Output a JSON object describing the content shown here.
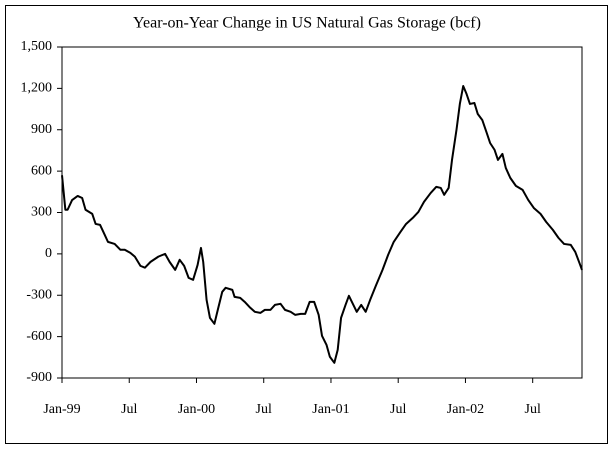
{
  "chart_data": {
    "type": "line",
    "title": "Year-on-Year Change in US Natural Gas Storage (bcf)",
    "x": [
      0,
      0.3,
      0.5,
      0.9,
      1.4,
      1.8,
      2.1,
      2.7,
      3.0,
      3.4,
      3.8,
      4.1,
      4.7,
      5.2,
      5.6,
      6.1,
      6.5,
      7.0,
      7.4,
      7.9,
      8.6,
      9.2,
      9.6,
      10.1,
      10.5,
      10.9,
      11.3,
      11.7,
      12.1,
      12.4,
      12.6,
      12.9,
      13.2,
      13.6,
      13.9,
      14.3,
      14.6,
      15.2,
      15.4,
      15.9,
      16.3,
      16.8,
      17.2,
      17.7,
      18.1,
      18.6,
      19.0,
      19.5,
      19.9,
      20.4,
      20.8,
      21.3,
      21.7,
      22.1,
      22.5,
      22.9,
      23.2,
      23.6,
      23.9,
      24.3,
      24.6,
      24.9,
      25.3,
      25.6,
      26.0,
      26.3,
      26.7,
      27.1,
      27.5,
      28.0,
      28.6,
      29.1,
      29.6,
      30.2,
      30.7,
      31.3,
      31.8,
      32.3,
      32.9,
      33.4,
      33.8,
      34.1,
      34.5,
      34.8,
      35.2,
      35.5,
      35.8,
      36.1,
      36.4,
      36.8,
      37.1,
      37.5,
      37.9,
      38.2,
      38.6,
      38.9,
      39.3,
      39.6,
      40.0,
      40.5,
      41.1,
      41.6,
      42.1,
      42.7,
      43.2,
      43.8,
      44.3,
      44.8,
      45.4,
      45.8,
      46.2,
      46.4
    ],
    "series": [
      {
        "name": "Year-on-Year Change",
        "color": "#000000",
        "values": [
          570,
          320,
          320,
          390,
          420,
          405,
          320,
          290,
          217,
          210,
          140,
          87,
          72,
          30,
          30,
          7,
          -20,
          -87,
          -100,
          -58,
          -20,
          0,
          -58,
          -116,
          -43,
          -87,
          -174,
          -188,
          -80,
          43,
          -58,
          -333,
          -464,
          -507,
          -406,
          -275,
          -246,
          -261,
          -312,
          -319,
          -348,
          -391,
          -420,
          -428,
          -406,
          -406,
          -370,
          -362,
          -406,
          -420,
          -442,
          -435,
          -435,
          -348,
          -348,
          -442,
          -594,
          -659,
          -746,
          -790,
          -696,
          -464,
          -370,
          -304,
          -370,
          -420,
          -370,
          -420,
          -333,
          -232,
          -116,
          -7,
          87,
          159,
          217,
          261,
          304,
          377,
          442,
          486,
          478,
          428,
          478,
          681,
          899,
          1087,
          1217,
          1159,
          1087,
          1094,
          1014,
          971,
          877,
          804,
          754,
          681,
          725,
          623,
          551,
          493,
          464,
          391,
          333,
          290,
          232,
          174,
          116,
          72,
          65,
          14,
          -72,
          -116
        ]
      }
    ],
    "xlim": [
      0,
      46.4
    ],
    "xticks": [
      {
        "value": 0,
        "label": "Jan-99"
      },
      {
        "value": 6,
        "label": "Jul"
      },
      {
        "value": 12,
        "label": "Jan-00"
      },
      {
        "value": 18,
        "label": "Jul"
      },
      {
        "value": 24,
        "label": "Jan-01"
      },
      {
        "value": 30,
        "label": "Jul"
      },
      {
        "value": 36,
        "label": "Jan-02"
      },
      {
        "value": 42,
        "label": "Jul"
      }
    ],
    "ylim": [
      -900,
      1500
    ],
    "yticks": [
      {
        "value": 1500,
        "label": "1,500"
      },
      {
        "value": 1200,
        "label": "1,200"
      },
      900,
      600,
      300,
      0,
      -300,
      -600,
      -900
    ]
  }
}
